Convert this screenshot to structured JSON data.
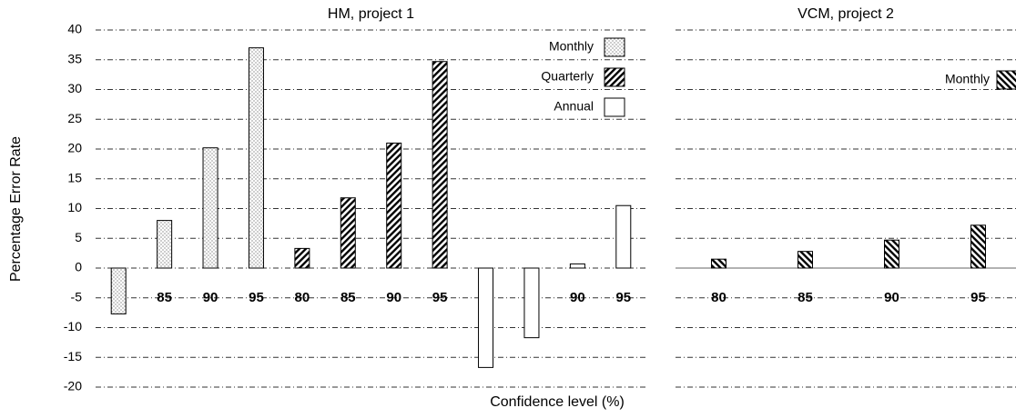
{
  "chart_data": [
    {
      "type": "bar",
      "title": "HM, project 1",
      "x_label": "Confidence level (%)",
      "y_label": "Percentage Error Rate",
      "categories": [
        "80",
        "85",
        "90",
        "95",
        "80",
        "85",
        "90",
        "95",
        "80",
        "85",
        "90",
        "95"
      ],
      "series": [
        {
          "name": "Monthly",
          "color": "#000000",
          "pattern": "dots",
          "values": [
            -7.7,
            8,
            20.2,
            37,
            null,
            null,
            null,
            null,
            null,
            null,
            null,
            null
          ]
        },
        {
          "name": "Quarterly",
          "color": "#000000",
          "pattern": "hatch",
          "values": [
            null,
            null,
            null,
            null,
            3.3,
            11.8,
            21,
            34.7,
            null,
            null,
            null,
            null
          ]
        },
        {
          "name": "Annual",
          "color": "#000000",
          "pattern": "none",
          "values": [
            null,
            null,
            null,
            null,
            null,
            null,
            null,
            null,
            -16.7,
            -11.7,
            0.7,
            10.5
          ]
        }
      ],
      "ylim": [
        -20,
        40
      ],
      "yticks": [
        -20,
        -15,
        -10,
        -5,
        0,
        5,
        10,
        15,
        20,
        25,
        30,
        35,
        40
      ],
      "grid": true,
      "legend": "top-right"
    },
    {
      "type": "bar",
      "title": "VCM, project 2",
      "categories": [
        "80",
        "85",
        "90",
        "95"
      ],
      "series": [
        {
          "name": "Monthly",
          "color": "#000000",
          "pattern": "backhatch",
          "values": [
            1.5,
            2.8,
            4.7,
            7.2
          ]
        }
      ],
      "ylim": [
        -20,
        40
      ],
      "yticks": [
        -20,
        -15,
        -10,
        -5,
        0,
        5,
        10,
        15,
        20,
        25,
        30,
        35,
        40
      ],
      "grid": true,
      "legend": "top-right"
    }
  ]
}
